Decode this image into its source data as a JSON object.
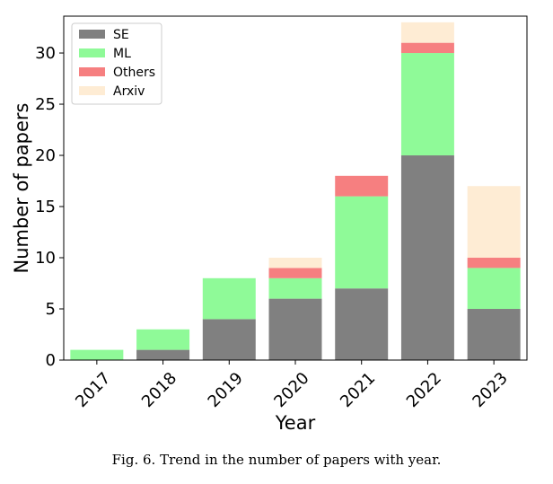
{
  "chart_data": {
    "type": "bar",
    "stacked": true,
    "categories": [
      "2017",
      "2018",
      "2019",
      "2020",
      "2021",
      "2022",
      "2023"
    ],
    "series": [
      {
        "name": "SE",
        "color": "#808080",
        "values": [
          0,
          1,
          4,
          6,
          7,
          20,
          5
        ]
      },
      {
        "name": "ML",
        "color": "#8ffa98",
        "values": [
          1,
          2,
          4,
          2,
          9,
          10,
          4
        ]
      },
      {
        "name": "Others",
        "color": "#f67f80",
        "values": [
          0,
          0,
          0,
          1,
          2,
          1,
          1
        ]
      },
      {
        "name": "Arxiv",
        "color": "#feecd4",
        "values": [
          0,
          0,
          0,
          1,
          0,
          2,
          7
        ]
      }
    ],
    "xlabel": "Year",
    "ylabel": "Number of papers",
    "ylim": [
      0,
      33.6
    ],
    "yticks": [
      0,
      5,
      10,
      15,
      20,
      25,
      30
    ],
    "grid": false,
    "legend": "top-left"
  },
  "caption": "Fig. 6.  Trend in the number of papers with year."
}
